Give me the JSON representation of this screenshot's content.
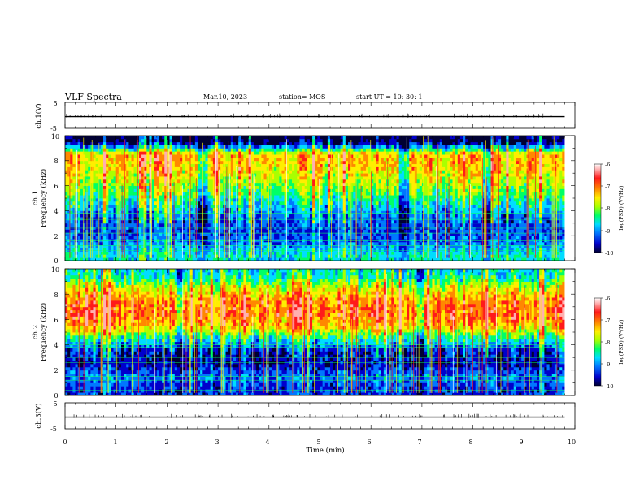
{
  "header": {
    "title": "VLF Spectra",
    "date": "Mar.10, 2023",
    "station": "station= MOS",
    "start_time": "start UT = 10: 30: 1"
  },
  "xaxis": {
    "label": "Time (min)",
    "ticks": [
      "0",
      "1",
      "2",
      "3",
      "4",
      "5",
      "6",
      "7",
      "8",
      "9",
      "10"
    ],
    "range": [
      0,
      10
    ]
  },
  "panels": {
    "ch1_waveform": {
      "ylabel": "ch.1(V)",
      "ticks": [
        "5",
        "-5"
      ],
      "range": [
        -5,
        5
      ]
    },
    "ch1_spec": {
      "ylabel": "ch.1",
      "ylabel2": "Frequency (kHz)",
      "ticks": [
        "10",
        "8",
        "6",
        "4",
        "2",
        "0"
      ],
      "range": [
        0,
        10
      ]
    },
    "ch2_spec": {
      "ylabel": "ch.2",
      "ylabel2": "Frequency (kHz)",
      "ticks": [
        "10",
        "8",
        "6",
        "4",
        "2",
        "0"
      ],
      "range": [
        0,
        10
      ]
    },
    "ch3_waveform": {
      "ylabel": "ch.3(V)",
      "ticks": [
        "5",
        "-5"
      ],
      "range": [
        -5,
        5
      ]
    }
  },
  "colorbar": {
    "label": "log(PSD) (V²/Hz)",
    "ticks": [
      "-6",
      "-7",
      "-8",
      "-9",
      "-10"
    ],
    "range": [
      -10,
      -6
    ],
    "colors": [
      "#000033",
      "#0000cc",
      "#0077ff",
      "#00ddff",
      "#00ff66",
      "#aaff00",
      "#ffee00",
      "#ff8800",
      "#ff1a1a",
      "#ffb0b0",
      "#ffffff"
    ]
  },
  "chart_data": [
    {
      "type": "line",
      "title": "VLF Spectra",
      "xlabel": "Time (min)",
      "ylabel": "ch.1(V)",
      "xlim": [
        0,
        10
      ],
      "ylim": [
        -5,
        5
      ],
      "series": [
        {
          "x": [
            0,
            9.8
          ],
          "values": [
            -0.5,
            -0.5
          ]
        }
      ]
    },
    {
      "type": "heatmap",
      "xlabel": "Time (min)",
      "ylabel": "Frequency (kHz)",
      "xlim": [
        0,
        9.8
      ],
      "ylim": [
        0,
        10
      ],
      "colorbar_range": [
        -10,
        -6
      ],
      "frequency_kHz": [
        0.5,
        1.5,
        2.5,
        3.5,
        4.5,
        5.5,
        6.5,
        7.5,
        8.5,
        9.5
      ],
      "log_psd_typical": [
        -8.5,
        -9.0,
        -9.2,
        -9.0,
        -8.5,
        -8.0,
        -7.6,
        -7.3,
        -7.2,
        -9.8
      ],
      "spectral_line_kHz": [
        0.3,
        0.8,
        1.2,
        1.6,
        2.2,
        2.6,
        3.0,
        3.3,
        3.8
      ]
    },
    {
      "type": "heatmap",
      "xlabel": "Time (min)",
      "ylabel": "Frequency (kHz)",
      "xlim": [
        0,
        9.8
      ],
      "ylim": [
        0,
        10
      ],
      "colorbar_range": [
        -10,
        -6
      ],
      "frequency_kHz": [
        0.5,
        1.5,
        2.5,
        3.5,
        4.5,
        5.5,
        6.5,
        7.5,
        8.5,
        9.5
      ],
      "log_psd_typical": [
        -9.3,
        -9.0,
        -9.5,
        -9.4,
        -8.4,
        -7.2,
        -6.8,
        -7.0,
        -7.6,
        -8.5
      ],
      "spectral_line_kHz": [
        0.4,
        1.2,
        1.5,
        2.6,
        3.0,
        3.8,
        4.0
      ]
    },
    {
      "type": "line",
      "xlabel": "Time (min)",
      "ylabel": "ch.3(V)",
      "xlim": [
        0,
        10
      ],
      "ylim": [
        -5,
        5
      ],
      "series": [
        {
          "x": [
            0,
            9.8
          ],
          "values": [
            -0.5,
            -0.5
          ]
        }
      ]
    }
  ]
}
